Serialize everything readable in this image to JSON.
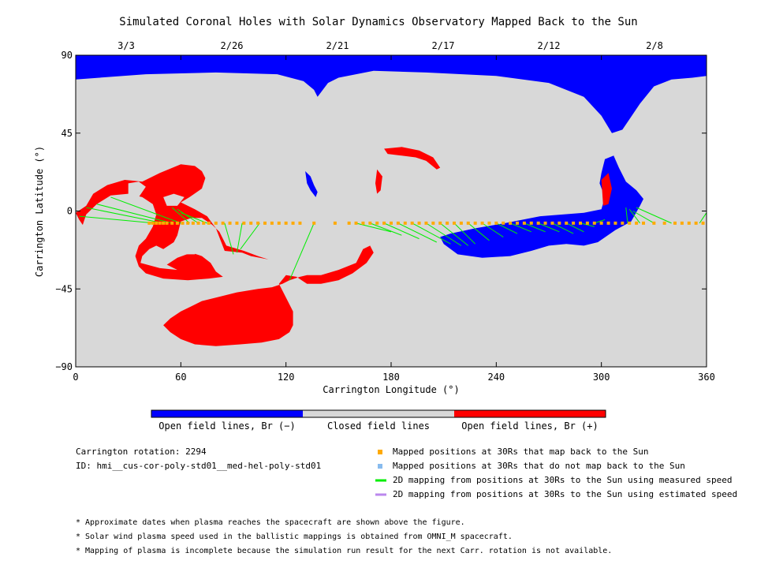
{
  "chart_data": {
    "type": "map",
    "title": "Simulated Coronal Holes with Solar Dynamics Observatory Mapped Back to the Sun",
    "xlabel": "Carrington Longitude (°)",
    "ylabel": "Carrington Latitude (°)",
    "xlim": [
      0,
      360
    ],
    "ylim": [
      -90,
      90
    ],
    "x_ticks": [
      "0",
      "60",
      "120",
      "180",
      "240",
      "300",
      "360"
    ],
    "y_ticks": [
      "90",
      "45",
      "0",
      "−45",
      "−90"
    ],
    "top_dates": [
      "3/3",
      "2/26",
      "2/21",
      "2/17",
      "2/12",
      "2/8"
    ],
    "colors": {
      "open_negative": "#0000ff",
      "closed": "#d8d8d8",
      "open_positive": "#ff0000",
      "mapped_sun": "#ffaa00",
      "mapped_no_sun": "#88bbee",
      "measured_speed": "#00ee00",
      "estimated_speed": "#bb88ee"
    },
    "colorbar": [
      {
        "label": "Open field lines, Br (−)",
        "color": "#0000ff"
      },
      {
        "label": "Closed field lines",
        "color": "#d8d8d8"
      },
      {
        "label": "Open field lines, Br (+)",
        "color": "#ff0000"
      }
    ],
    "mapped_points_latitude": -7,
    "mapped_points_longitude": [
      42,
      44,
      46,
      48,
      50,
      52,
      55,
      58,
      61,
      64,
      67,
      70,
      73,
      76,
      80,
      84,
      88,
      92,
      96,
      100,
      104,
      108,
      112,
      116,
      120,
      124,
      128,
      136,
      148,
      156,
      160,
      164,
      168,
      172,
      176,
      180,
      184,
      188,
      192,
      196,
      200,
      204,
      208,
      212,
      216,
      220,
      224,
      228,
      232,
      236,
      240,
      244,
      248,
      252,
      256,
      260,
      264,
      268,
      272,
      276,
      280,
      284,
      288,
      292,
      296,
      300,
      304,
      308,
      312,
      316,
      320,
      324,
      330,
      336,
      342,
      346,
      350,
      354,
      358
    ],
    "measured_speed_mappings": [
      {
        "from_lon": 45,
        "to_lon": 2,
        "to_lat": -3
      },
      {
        "from_lon": 50,
        "to_lon": 6,
        "to_lat": 2
      },
      {
        "from_lon": 55,
        "to_lon": 12,
        "to_lat": 4
      },
      {
        "from_lon": 60,
        "to_lon": 20,
        "to_lat": 8
      },
      {
        "from_lon": 65,
        "to_lon": 55,
        "to_lat": 2
      },
      {
        "from_lon": 70,
        "to_lon": 58,
        "to_lat": 1
      },
      {
        "from_lon": 75,
        "to_lon": 60,
        "to_lat": -1
      },
      {
        "from_lon": 85,
        "to_lon": 90,
        "to_lat": -25
      },
      {
        "from_lon": 95,
        "to_lon": 92,
        "to_lat": -24
      },
      {
        "from_lon": 105,
        "to_lon": 94,
        "to_lat": -22
      },
      {
        "from_lon": 136,
        "to_lon": 122,
        "to_lat": -40
      },
      {
        "from_lon": 160,
        "to_lon": 180,
        "to_lat": -12
      },
      {
        "from_lon": 168,
        "to_lon": 186,
        "to_lat": -14
      },
      {
        "from_lon": 176,
        "to_lon": 196,
        "to_lat": -16
      },
      {
        "from_lon": 184,
        "to_lon": 206,
        "to_lat": -18
      },
      {
        "from_lon": 192,
        "to_lon": 214,
        "to_lat": -19
      },
      {
        "from_lon": 200,
        "to_lon": 220,
        "to_lat": -20
      },
      {
        "from_lon": 208,
        "to_lon": 224,
        "to_lat": -20
      },
      {
        "from_lon": 216,
        "to_lon": 228,
        "to_lat": -19
      },
      {
        "from_lon": 224,
        "to_lon": 236,
        "to_lat": -17
      },
      {
        "from_lon": 232,
        "to_lon": 244,
        "to_lat": -15
      },
      {
        "from_lon": 240,
        "to_lon": 252,
        "to_lat": -13
      },
      {
        "from_lon": 248,
        "to_lon": 260,
        "to_lat": -12
      },
      {
        "from_lon": 256,
        "to_lon": 268,
        "to_lat": -12
      },
      {
        "from_lon": 264,
        "to_lon": 276,
        "to_lat": -12
      },
      {
        "from_lon": 272,
        "to_lon": 284,
        "to_lat": -13
      },
      {
        "from_lon": 280,
        "to_lon": 290,
        "to_lat": -12
      },
      {
        "from_lon": 288,
        "to_lon": 296,
        "to_lat": -9
      },
      {
        "from_lon": 296,
        "to_lon": 302,
        "to_lat": -5
      },
      {
        "from_lon": 315,
        "to_lon": 314,
        "to_lat": 2
      },
      {
        "from_lon": 322,
        "to_lon": 316,
        "to_lat": 1
      },
      {
        "from_lon": 330,
        "to_lon": 318,
        "to_lat": 0
      },
      {
        "from_lon": 340,
        "to_lon": 320,
        "to_lat": 2
      },
      {
        "from_lon": 356,
        "to_lon": 360,
        "to_lat": -1
      }
    ]
  },
  "info": {
    "rotation": "Carrington rotation: 2294",
    "id": "ID: hmi__cus-cor-poly-std01__med-hel-poly-std01"
  },
  "legend": [
    {
      "label": "Mapped positions at 30Rs that map back to the Sun",
      "kind": "square",
      "color": "#ffaa00"
    },
    {
      "label": "Mapped positions at 30Rs that do not map back to the Sun",
      "kind": "square",
      "color": "#88bbee"
    },
    {
      "label": "2D mapping from positions at 30Rs to the Sun using measured speed",
      "kind": "line",
      "color": "#00ee00"
    },
    {
      "label": "2D mapping from positions at 30Rs to the Sun using estimated speed",
      "kind": "line",
      "color": "#bb88ee"
    }
  ],
  "notes": [
    "* Approximate dates when plasma reaches the spacecraft are shown above the figure.",
    "* Solar wind plasma speed used in the ballistic mappings is obtained from OMNI_M spacecraft.",
    "* Mapping of plasma is incomplete because the simulation run result for the next Carr. rotation is not available."
  ]
}
